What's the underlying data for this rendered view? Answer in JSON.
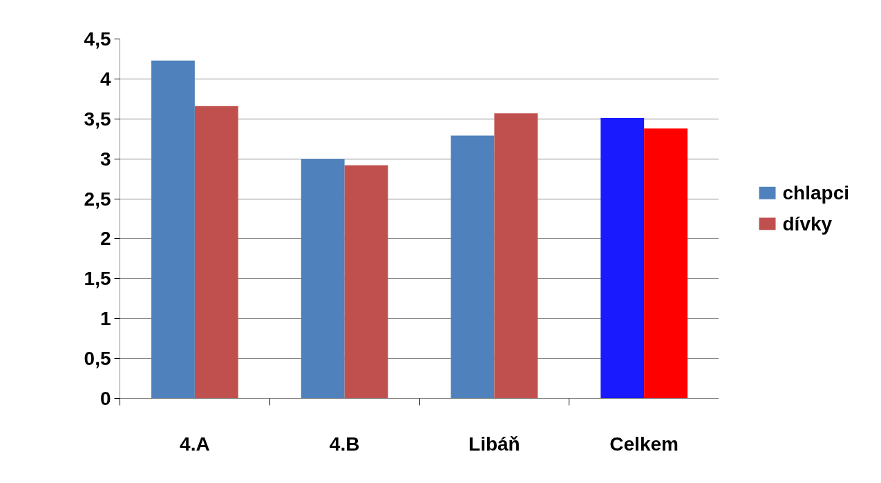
{
  "chart_data": {
    "type": "bar",
    "categories": [
      "4.A",
      "4.B",
      "Libáň",
      "Celkem"
    ],
    "series": [
      {
        "name": "chlapci",
        "color": "#4f81bd",
        "colors": [
          "#4f81bd",
          "#4f81bd",
          "#4f81bd",
          "#1a1aff"
        ],
        "values": [
          4.23,
          3.0,
          3.29,
          3.51
        ]
      },
      {
        "name": "dívky",
        "color": "#c0504d",
        "colors": [
          "#c0504d",
          "#c0504d",
          "#c0504d",
          "#ff0000"
        ],
        "values": [
          3.66,
          2.92,
          3.57,
          3.38
        ]
      }
    ],
    "ylim": [
      0,
      4.5
    ],
    "yticks": [
      0,
      {
        "value": 0.5,
        "label": "0,5"
      },
      1,
      {
        "value": 1.5,
        "label": "1,5"
      },
      2,
      {
        "value": 2.5,
        "label": "2,5"
      },
      3,
      {
        "value": 3.5,
        "label": "3,5"
      },
      4,
      {
        "value": 4.5,
        "label": "4,5"
      }
    ],
    "grid": "y",
    "legend": "right"
  }
}
